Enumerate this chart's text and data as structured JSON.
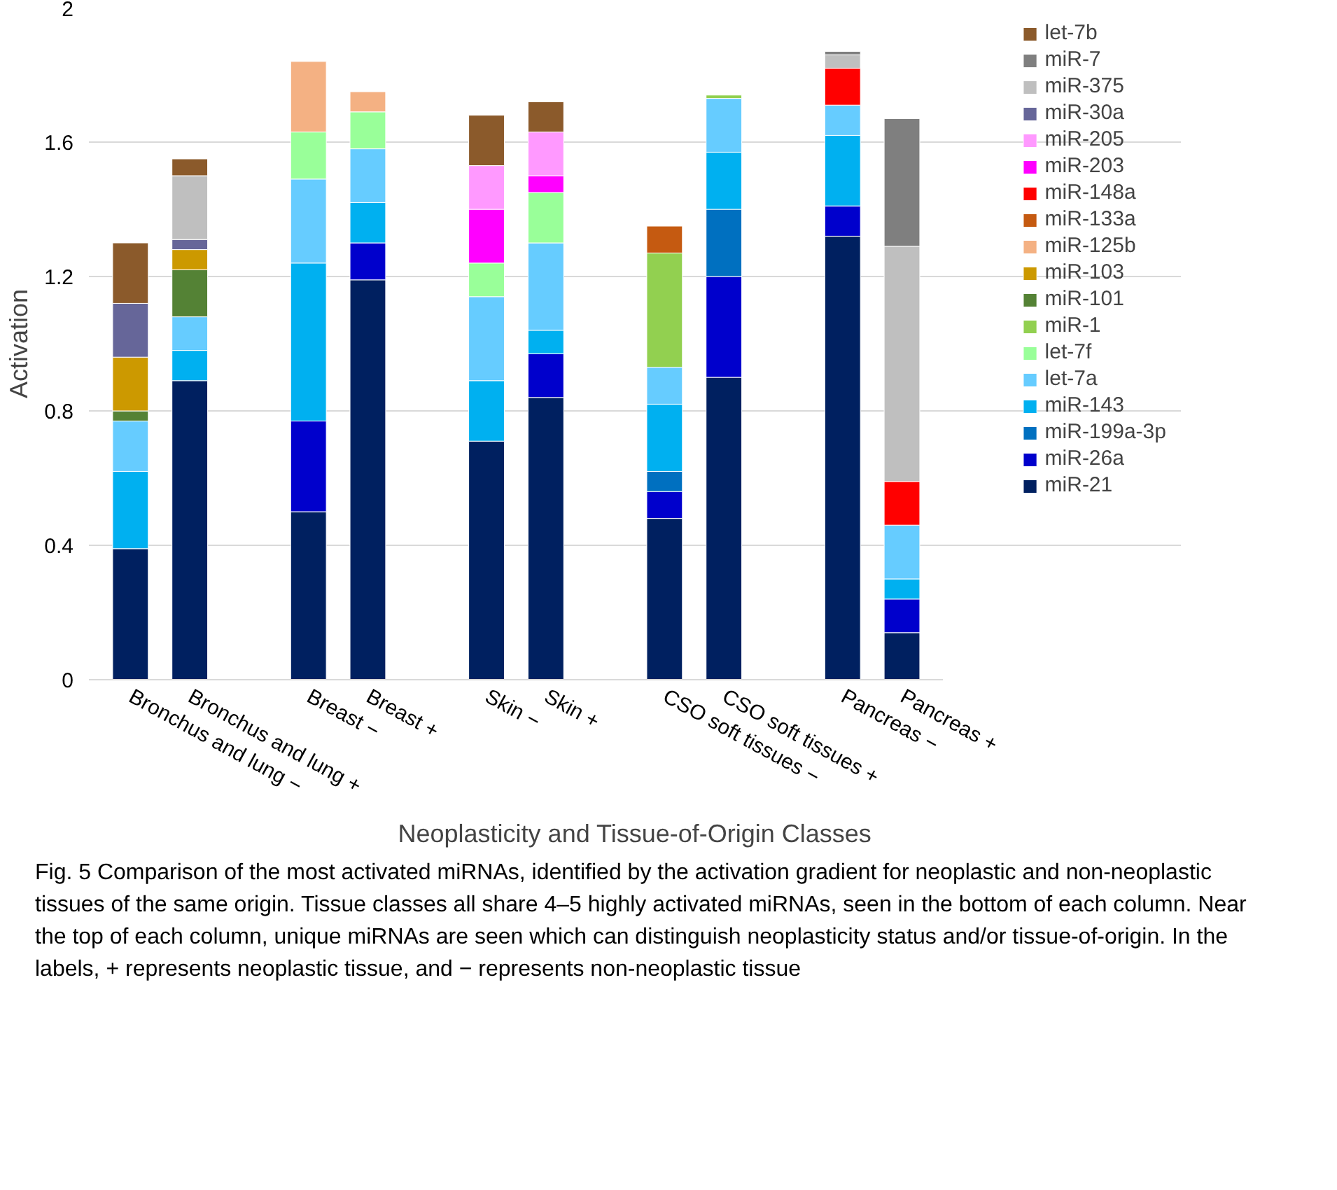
{
  "chart_data": {
    "type": "bar",
    "stacked": true,
    "xlabel": "Neoplasticity and Tissue-of-Origin Classes",
    "ylabel": "Activation",
    "categories": [
      "Bronchus and lung −",
      "Bronchus and lung +",
      null,
      "Breast −",
      "Breast +",
      null,
      "Skin −",
      "Skin +",
      null,
      "CSO soft tissues −",
      "CSO soft tissues +",
      null,
      "Pancreas −",
      "Pancreas +"
    ],
    "ylim": [
      0,
      2
    ],
    "yticks": [
      0,
      0.4,
      0.8,
      1.2,
      1.6,
      2
    ],
    "grid": "y",
    "legend": "right",
    "series": [
      {
        "name": "miR-21",
        "color": "#002060",
        "values": [
          0.39,
          0.89,
          null,
          0.5,
          1.19,
          null,
          0.71,
          0.84,
          null,
          0.48,
          0.9,
          null,
          1.32,
          0.14
        ]
      },
      {
        "name": "miR-26a",
        "color": "#0000cc",
        "values": [
          null,
          null,
          null,
          0.27,
          0.11,
          null,
          null,
          0.13,
          null,
          0.08,
          0.3,
          null,
          0.09,
          0.1
        ]
      },
      {
        "name": "miR-199a-3p",
        "color": "#0070c0",
        "values": [
          null,
          null,
          null,
          null,
          null,
          null,
          null,
          null,
          null,
          0.06,
          0.2,
          null,
          null,
          null
        ]
      },
      {
        "name": "miR-143",
        "color": "#00b0f0",
        "values": [
          0.23,
          0.09,
          null,
          0.47,
          0.12,
          null,
          0.18,
          0.07,
          null,
          0.2,
          0.17,
          null,
          0.21,
          0.06
        ]
      },
      {
        "name": "let-7a",
        "color": "#66ccff",
        "values": [
          0.15,
          0.1,
          null,
          0.25,
          0.16,
          null,
          0.25,
          0.26,
          null,
          0.11,
          0.16,
          null,
          0.09,
          0.16
        ]
      },
      {
        "name": "let-7f",
        "color": "#99ff99",
        "values": [
          null,
          null,
          null,
          0.14,
          0.11,
          null,
          0.1,
          0.15,
          null,
          null,
          null,
          null,
          null,
          null
        ]
      },
      {
        "name": "miR-1",
        "color": "#92d050",
        "values": [
          null,
          null,
          null,
          null,
          null,
          null,
          null,
          null,
          null,
          0.34,
          0.01,
          null,
          null,
          null
        ]
      },
      {
        "name": "miR-101",
        "color": "#548235",
        "values": [
          0.03,
          0.14,
          null,
          null,
          null,
          null,
          null,
          null,
          null,
          null,
          null,
          null,
          null,
          null
        ]
      },
      {
        "name": "miR-103",
        "color": "#cc9900",
        "values": [
          0.16,
          0.06,
          null,
          null,
          null,
          null,
          null,
          null,
          null,
          null,
          null,
          null,
          null,
          null
        ]
      },
      {
        "name": "miR-125b",
        "color": "#f4b183",
        "values": [
          null,
          null,
          null,
          0.21,
          0.06,
          null,
          null,
          null,
          null,
          null,
          null,
          null,
          null,
          null
        ]
      },
      {
        "name": "miR-133a",
        "color": "#c55a11",
        "values": [
          null,
          null,
          null,
          null,
          null,
          null,
          null,
          null,
          null,
          0.08,
          null,
          null,
          null,
          null
        ]
      },
      {
        "name": "miR-148a",
        "color": "#ff0000",
        "values": [
          null,
          null,
          null,
          null,
          null,
          null,
          null,
          null,
          null,
          null,
          null,
          null,
          0.11,
          0.13
        ]
      },
      {
        "name": "miR-203",
        "color": "#ff00ff",
        "values": [
          null,
          null,
          null,
          null,
          null,
          null,
          0.16,
          0.05,
          null,
          null,
          null,
          null,
          null,
          null
        ]
      },
      {
        "name": "miR-205",
        "color": "#ff99ff",
        "values": [
          null,
          null,
          null,
          null,
          null,
          null,
          0.13,
          0.13,
          null,
          null,
          null,
          null,
          null,
          null
        ]
      },
      {
        "name": "miR-30a",
        "color": "#666699",
        "values": [
          0.16,
          0.03,
          null,
          null,
          null,
          null,
          null,
          null,
          null,
          null,
          null,
          null,
          null,
          null
        ]
      },
      {
        "name": "miR-375",
        "color": "#bfbfbf",
        "values": [
          null,
          0.19,
          null,
          null,
          null,
          null,
          null,
          null,
          null,
          null,
          null,
          null,
          0.04,
          0.7
        ]
      },
      {
        "name": "miR-7",
        "color": "#7f7f7f",
        "values": [
          null,
          null,
          null,
          null,
          null,
          null,
          null,
          null,
          null,
          null,
          null,
          null,
          0.01,
          0.38
        ]
      },
      {
        "name": "let-7b",
        "color": "#8b5a2b",
        "values": [
          0.18,
          0.05,
          null,
          null,
          null,
          null,
          0.15,
          0.09,
          null,
          null,
          null,
          null,
          null,
          null
        ]
      }
    ],
    "annotations": [
      "Fig. 5  Comparison of the most activated miRNAs, identified by the activation gradient for neoplastic and non-neoplastic tissues of the same origin. Tissue classes all share 4–5 highly activated miRNAs, seen in the bottom of each column. Near the top of each column, unique miRNAs are seen which can distinguish neoplasticity status and/or tissue-of-origin. In the labels, + represents neoplastic tissue, and − represents non-neoplastic tissue"
    ]
  }
}
